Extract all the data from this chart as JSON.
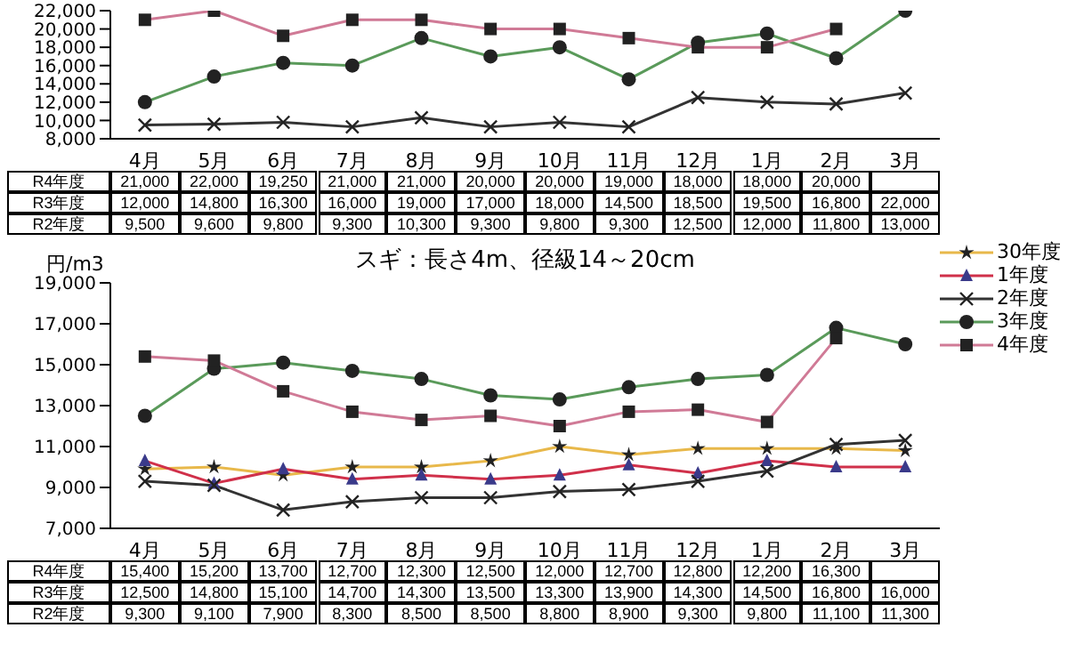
{
  "chart_data": [
    {
      "type": "line",
      "categories": [
        "4月",
        "5月",
        "6月",
        "7月",
        "8月",
        "9月",
        "10月",
        "11月",
        "12月",
        "1月",
        "2月",
        "3月"
      ],
      "ylim": [
        8000,
        22000
      ],
      "yticks": [
        {
          "value": 8000,
          "label": "8,000"
        },
        {
          "value": 10000,
          "label": "10,000"
        },
        {
          "value": 12000,
          "label": "12,000"
        },
        {
          "value": 14000,
          "label": "14,000"
        },
        {
          "value": 16000,
          "label": "16,000"
        },
        {
          "value": 18000,
          "label": "18,000"
        },
        {
          "value": 20000,
          "label": "20,000"
        },
        {
          "value": 22000,
          "label": "22,000"
        }
      ],
      "grid": false,
      "legend": false,
      "y_categories": [
        "R4年度",
        "R3年度",
        "R2年度"
      ],
      "series": [
        {
          "color": "#333333",
          "marker": "cross",
          "values": [
            9500,
            9600,
            9800,
            9300,
            10300,
            9300,
            9800,
            9300,
            12500,
            12000,
            11800,
            13000
          ],
          "value_labels": [
            "9,500",
            "9,600",
            "9,800",
            "9,300",
            "10,300",
            "9,300",
            "9,800",
            "9,300",
            "12,500",
            "12,000",
            "11,800",
            "13,000"
          ]
        },
        {
          "color": "#5a9a5a",
          "marker": "circle",
          "values": [
            12000,
            14800,
            16300,
            16000,
            19000,
            17000,
            18000,
            14500,
            18500,
            19500,
            16800,
            22000
          ],
          "value_labels": [
            "12,000",
            "14,800",
            "16,300",
            "16,000",
            "19,000",
            "17,000",
            "18,000",
            "14,500",
            "18,500",
            "19,500",
            "16,800",
            "22,000"
          ]
        },
        {
          "color": "#d07a96",
          "marker": "square",
          "values": [
            21000,
            22000,
            19250,
            21000,
            21000,
            20000,
            20000,
            19000,
            18000,
            18000,
            20000,
            null
          ],
          "value_labels": [
            "21,000",
            "22,000",
            "19,250",
            "21,000",
            "21,000",
            "20,000",
            "20,000",
            "19,000",
            "18,000",
            "18,000",
            "20,000",
            null
          ]
        }
      ]
    },
    {
      "type": "line",
      "title": "スギ：長さ4m、径級14～20cm",
      "ylabel": "円/m3",
      "categories": [
        "4月",
        "5月",
        "6月",
        "7月",
        "8月",
        "9月",
        "10月",
        "11月",
        "12月",
        "1月",
        "2月",
        "3月"
      ],
      "ylim": [
        7000,
        19000
      ],
      "yticks": [
        {
          "value": 7000,
          "label": "7,000"
        },
        {
          "value": 9000,
          "label": "9,000"
        },
        {
          "value": 11000,
          "label": "11,000"
        },
        {
          "value": 13000,
          "label": "13,000"
        },
        {
          "value": 15000,
          "label": "15,000"
        },
        {
          "value": 17000,
          "label": "17,000"
        },
        {
          "value": 19000,
          "label": "19,000"
        }
      ],
      "grid": false,
      "legend": "top right",
      "y_categories": [
        "R4年度",
        "R3年度",
        "R2年度"
      ],
      "series": [
        {
          "name": "30年度",
          "color": "#e8b84a",
          "marker": "star",
          "values": [
            9900,
            10000,
            9600,
            10000,
            10000,
            10300,
            11000,
            10600,
            10900,
            10900,
            10900,
            10800
          ]
        },
        {
          "name": "1年度",
          "color": "#d0304a",
          "marker": "triangle",
          "values": [
            10300,
            9200,
            9900,
            9400,
            9600,
            9400,
            9600,
            10100,
            9700,
            10300,
            10000,
            10000
          ]
        },
        {
          "name": "2年度",
          "color": "#333333",
          "marker": "cross",
          "values": [
            9300,
            9100,
            7900,
            8300,
            8500,
            8500,
            8800,
            8900,
            9300,
            9800,
            11100,
            11300
          ],
          "value_labels": [
            "9,300",
            "9,100",
            "7,900",
            "8,300",
            "8,500",
            "8,500",
            "8,800",
            "8,900",
            "9,300",
            "9,800",
            "11,100",
            "11,300"
          ]
        },
        {
          "name": "3年度",
          "color": "#5a9a5a",
          "marker": "circle",
          "values": [
            12500,
            14800,
            15100,
            14700,
            14300,
            13500,
            13300,
            13900,
            14300,
            14500,
            16800,
            16000
          ],
          "value_labels": [
            "12,500",
            "14,800",
            "15,100",
            "14,700",
            "14,300",
            "13,500",
            "13,300",
            "13,900",
            "14,300",
            "14,500",
            "16,800",
            "16,000"
          ]
        },
        {
          "name": "4年度",
          "color": "#d07a96",
          "marker": "square",
          "values": [
            15400,
            15200,
            13700,
            12700,
            12300,
            12500,
            12000,
            12700,
            12800,
            12200,
            16300,
            null
          ],
          "value_labels": [
            "15,400",
            "15,200",
            "13,700",
            "12,700",
            "12,300",
            "12,500",
            "12,000",
            "12,700",
            "12,800",
            "12,200",
            "16,300",
            null
          ]
        }
      ]
    }
  ]
}
